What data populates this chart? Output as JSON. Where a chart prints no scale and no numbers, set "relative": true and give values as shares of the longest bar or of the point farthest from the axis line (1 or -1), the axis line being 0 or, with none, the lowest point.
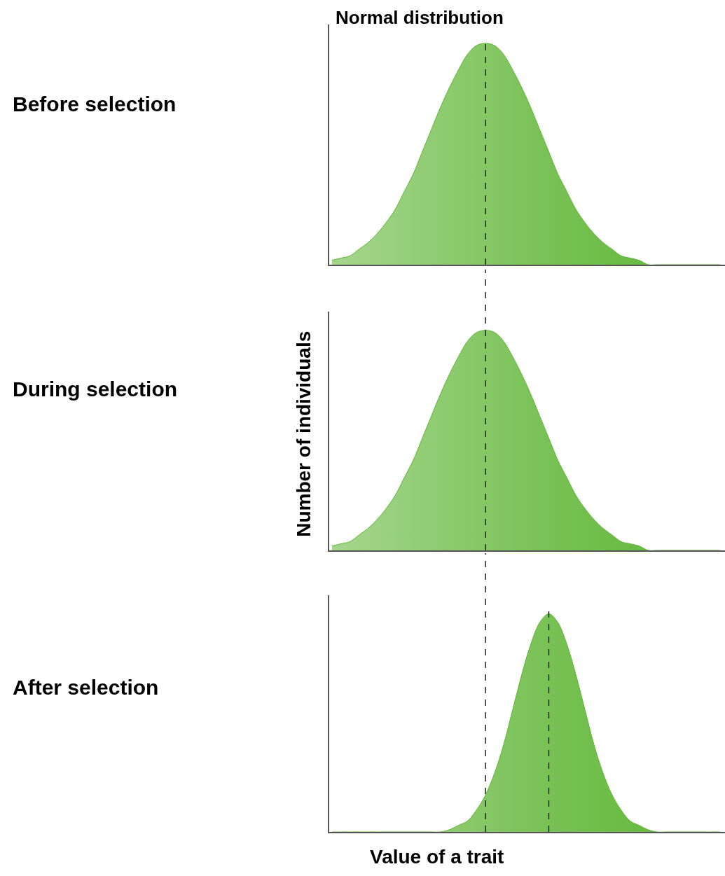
{
  "chart_data": [
    {
      "type": "area",
      "relative": true,
      "title": "Normal distribution",
      "annotations": [
        "Before selection"
      ],
      "categories": [
        null,
        null,
        null,
        null,
        null,
        null,
        null,
        null,
        null,
        null,
        null,
        null,
        null,
        null,
        null,
        null,
        null,
        null,
        null,
        null,
        null,
        null,
        null,
        null,
        null,
        null,
        null,
        null,
        null,
        null,
        null,
        null,
        null,
        null,
        null,
        null,
        null,
        null,
        null,
        null,
        null,
        null,
        null,
        null
      ],
      "series": [
        {
          "color": "#5cb531",
          "values": [
            0.02,
            0.03,
            0.04,
            0.07,
            0.1,
            0.14,
            0.19,
            0.25,
            0.33,
            0.41,
            0.51,
            0.61,
            0.71,
            0.8,
            0.88,
            0.95,
            0.99,
            1,
            0.99,
            0.95,
            0.88,
            0.8,
            0.71,
            0.61,
            0.51,
            0.41,
            0.33,
            0.25,
            0.19,
            0.14,
            0.1,
            0.07,
            0.04,
            0.03,
            0.02,
            0,
            0,
            0,
            0,
            0,
            0,
            0,
            0,
            0
          ]
        }
      ]
    },
    {
      "type": "area",
      "relative": true,
      "ylabel": "Number of individuals",
      "annotations": [
        "During selection"
      ],
      "categories": [
        null,
        null,
        null,
        null,
        null,
        null,
        null,
        null,
        null,
        null,
        null,
        null,
        null,
        null,
        null,
        null,
        null,
        null,
        null,
        null,
        null,
        null,
        null,
        null,
        null,
        null,
        null,
        null,
        null,
        null,
        null,
        null,
        null,
        null,
        null,
        null,
        null,
        null,
        null,
        null,
        null,
        null,
        null,
        null
      ],
      "series": [
        {
          "color": "#5cb531",
          "values": [
            0.02,
            0.03,
            0.04,
            0.07,
            0.1,
            0.14,
            0.19,
            0.25,
            0.33,
            0.41,
            0.51,
            0.61,
            0.71,
            0.8,
            0.88,
            0.95,
            0.99,
            1,
            0.99,
            0.95,
            0.88,
            0.8,
            0.71,
            0.61,
            0.51,
            0.41,
            0.33,
            0.25,
            0.19,
            0.14,
            0.1,
            0.07,
            0.04,
            0.03,
            0.02,
            0,
            0,
            0,
            0,
            0,
            0,
            0,
            0,
            0
          ]
        }
      ]
    },
    {
      "type": "area",
      "relative": true,
      "xlabel": "Value of a trait",
      "annotations": [
        "After selection"
      ],
      "categories": [
        null,
        null,
        null,
        null,
        null,
        null,
        null,
        null,
        null,
        null,
        null,
        null,
        null,
        null,
        null,
        null,
        null,
        null,
        null,
        null,
        null,
        null,
        null,
        null,
        null,
        null,
        null,
        null,
        null,
        null,
        null,
        null,
        null,
        null,
        null,
        null,
        null,
        null,
        null,
        null,
        null,
        null,
        null,
        null
      ],
      "series": [
        {
          "color": "#5cb531",
          "values": [
            0,
            0,
            0,
            0,
            0,
            0,
            0,
            0,
            0,
            0,
            0,
            0,
            0,
            0.01,
            0.03,
            0.05,
            0.1,
            0.17,
            0.27,
            0.4,
            0.56,
            0.72,
            0.86,
            0.96,
            1,
            0.96,
            0.86,
            0.72,
            0.56,
            0.4,
            0.27,
            0.17,
            0.1,
            0.05,
            0.03,
            0.01,
            0,
            0,
            0,
            0,
            0,
            0,
            0,
            0
          ]
        }
      ]
    }
  ]
}
